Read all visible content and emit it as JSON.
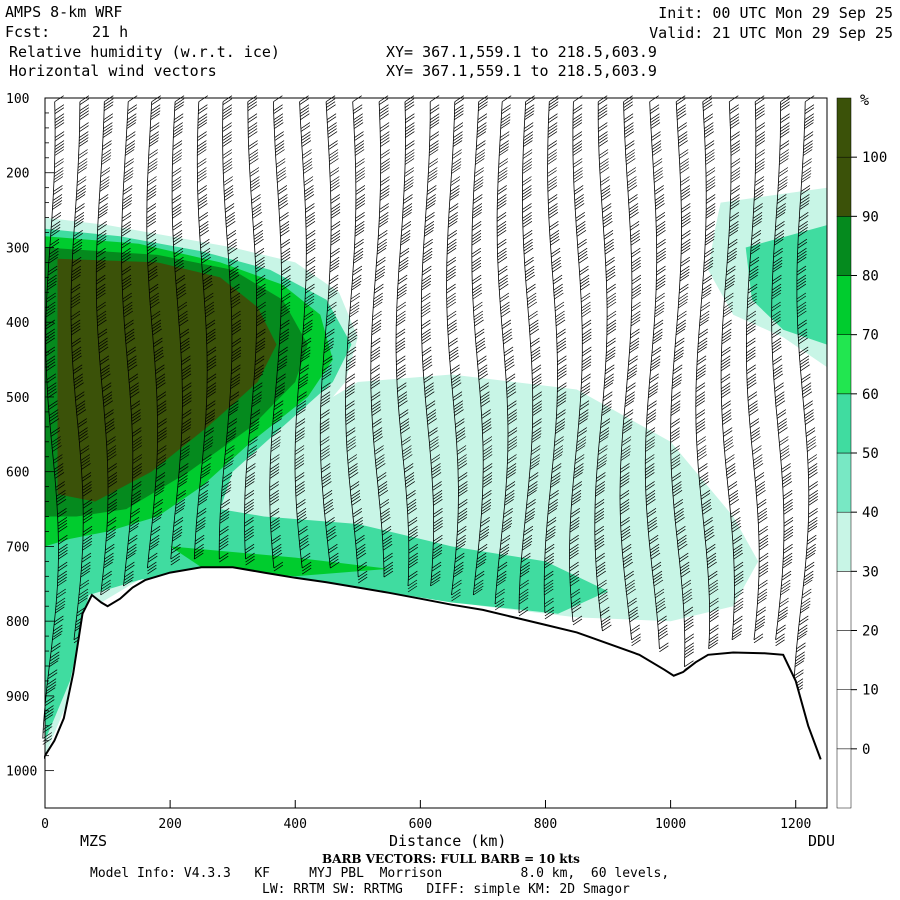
{
  "header": {
    "title": "AMPS 8-km WRF",
    "forecast_label": "Fcst:",
    "forecast_hours": "21 h",
    "init": "Init: 00 UTC Mon 29 Sep 25",
    "valid": "Valid: 21 UTC Mon 29 Sep 25",
    "field1": "Relative humidity (w.r.t. ice)",
    "field2": "Horizontal wind vectors",
    "xy1": "XY= 367.1,559.1 to 218.5,603.9",
    "xy2": "XY= 367.1,559.1 to 218.5,603.9"
  },
  "footer": {
    "barb_note": "BARB VECTORS: FULL BARB = 10 kts",
    "model_info": "Model Info: V4.3.3   KF     MYJ PBL  Morrison          8.0 km,  60 levels,",
    "model_info2": "LW: RRTM SW: RRTMG   DIFF: simple KM: 2D Smagor"
  },
  "chart_data": {
    "type": "heatmap",
    "title": "Relative humidity (w.r.t. ice)",
    "xlabel": "Distance (km)",
    "ylabel": "",
    "x_range": [
      0,
      1250
    ],
    "y_range": [
      100,
      1050
    ],
    "y_scale": "linear, pressure (hPa) increasing downward",
    "x_ticks": [
      0,
      200,
      400,
      600,
      800,
      1000,
      1200
    ],
    "y_ticks": [
      100,
      200,
      300,
      400,
      500,
      600,
      700,
      800,
      900,
      1000
    ],
    "endpoint_labels": [
      "MZS",
      "DDU"
    ],
    "colorbar": {
      "unit": "%",
      "levels": [
        0,
        10,
        20,
        30,
        40,
        50,
        60,
        70,
        80,
        90,
        100
      ],
      "colors": [
        "#ffffff",
        "#ffffff",
        "#ffffff",
        "#ffffff",
        "#c8f5e6",
        "#78e8c4",
        "#40dca0",
        "#22e650",
        "#00cc2e",
        "#058a1e",
        "#3b5209",
        "#3b5209"
      ]
    },
    "terrain_surface_hpa": [
      [
        0,
        980
      ],
      [
        15,
        960
      ],
      [
        30,
        930
      ],
      [
        45,
        870
      ],
      [
        60,
        790
      ],
      [
        75,
        765
      ],
      [
        90,
        775
      ],
      [
        100,
        780
      ],
      [
        120,
        770
      ],
      [
        140,
        755
      ],
      [
        160,
        745
      ],
      [
        200,
        735
      ],
      [
        250,
        728
      ],
      [
        300,
        728
      ],
      [
        350,
        735
      ],
      [
        400,
        742
      ],
      [
        450,
        748
      ],
      [
        500,
        755
      ],
      [
        550,
        762
      ],
      [
        600,
        770
      ],
      [
        650,
        778
      ],
      [
        700,
        785
      ],
      [
        750,
        795
      ],
      [
        800,
        805
      ],
      [
        850,
        815
      ],
      [
        900,
        830
      ],
      [
        950,
        845
      ],
      [
        990,
        865
      ],
      [
        1005,
        873
      ],
      [
        1020,
        868
      ],
      [
        1040,
        855
      ],
      [
        1060,
        845
      ],
      [
        1100,
        842
      ],
      [
        1150,
        843
      ],
      [
        1180,
        845
      ],
      [
        1200,
        880
      ],
      [
        1220,
        940
      ],
      [
        1240,
        985
      ]
    ],
    "humidity_regions": [
      {
        "rh": 40,
        "points": [
          [
            0,
            260
          ],
          [
            100,
            270
          ],
          [
            200,
            285
          ],
          [
            300,
            300
          ],
          [
            400,
            320
          ],
          [
            470,
            360
          ],
          [
            500,
            420
          ],
          [
            480,
            480
          ],
          [
            420,
            540
          ],
          [
            420,
            520
          ],
          [
            500,
            480
          ],
          [
            650,
            470
          ],
          [
            850,
            490
          ],
          [
            1000,
            560
          ],
          [
            1100,
            660
          ],
          [
            1140,
            720
          ],
          [
            1100,
            780
          ],
          [
            1000,
            800
          ],
          [
            850,
            795
          ],
          [
            700,
            780
          ],
          [
            550,
            760
          ],
          [
            400,
            742
          ],
          [
            250,
            728
          ],
          [
            150,
            745
          ],
          [
            60,
            790
          ],
          [
            40,
            900
          ],
          [
            0,
            980
          ]
        ]
      },
      {
        "rh": 40,
        "points": [
          [
            1080,
            240
          ],
          [
            1250,
            220
          ],
          [
            1250,
            460
          ],
          [
            1180,
            420
          ],
          [
            1100,
            390
          ],
          [
            1060,
            330
          ],
          [
            1070,
            280
          ]
        ]
      },
      {
        "rh": 60,
        "points": [
          [
            0,
            275
          ],
          [
            120,
            285
          ],
          [
            250,
            305
          ],
          [
            360,
            330
          ],
          [
            450,
            370
          ],
          [
            490,
            430
          ],
          [
            460,
            480
          ],
          [
            380,
            540
          ],
          [
            300,
            600
          ],
          [
            280,
            650
          ],
          [
            350,
            660
          ],
          [
            500,
            670
          ],
          [
            650,
            700
          ],
          [
            800,
            720
          ],
          [
            900,
            760
          ],
          [
            820,
            790
          ],
          [
            650,
            775
          ],
          [
            500,
            755
          ],
          [
            350,
            735
          ],
          [
            250,
            728
          ],
          [
            150,
            745
          ],
          [
            70,
            765
          ],
          [
            40,
            880
          ],
          [
            0,
            960
          ]
        ]
      },
      {
        "rh": 60,
        "points": [
          [
            1120,
            300
          ],
          [
            1250,
            270
          ],
          [
            1250,
            430
          ],
          [
            1180,
            410
          ],
          [
            1130,
            370
          ]
        ]
      },
      {
        "rh": 80,
        "points": [
          [
            0,
            285
          ],
          [
            150,
            295
          ],
          [
            280,
            320
          ],
          [
            380,
            350
          ],
          [
            440,
            390
          ],
          [
            460,
            450
          ],
          [
            420,
            500
          ],
          [
            330,
            560
          ],
          [
            250,
            620
          ],
          [
            180,
            660
          ],
          [
            100,
            680
          ],
          [
            40,
            690
          ],
          [
            0,
            700
          ]
        ]
      },
      {
        "rh": 80,
        "points": [
          [
            200,
            700
          ],
          [
            400,
            715
          ],
          [
            550,
            730
          ],
          [
            400,
            740
          ],
          [
            250,
            728
          ]
        ]
      },
      {
        "rh": 90,
        "points": [
          [
            0,
            300
          ],
          [
            180,
            310
          ],
          [
            300,
            330
          ],
          [
            380,
            370
          ],
          [
            420,
            430
          ],
          [
            400,
            480
          ],
          [
            330,
            540
          ],
          [
            230,
            600
          ],
          [
            130,
            650
          ],
          [
            50,
            660
          ],
          [
            0,
            660
          ]
        ]
      },
      {
        "rh": 100,
        "points": [
          [
            20,
            315
          ],
          [
            180,
            320
          ],
          [
            280,
            340
          ],
          [
            340,
            380
          ],
          [
            370,
            430
          ],
          [
            340,
            480
          ],
          [
            260,
            540
          ],
          [
            170,
            600
          ],
          [
            80,
            640
          ],
          [
            20,
            630
          ]
        ]
      }
    ]
  }
}
